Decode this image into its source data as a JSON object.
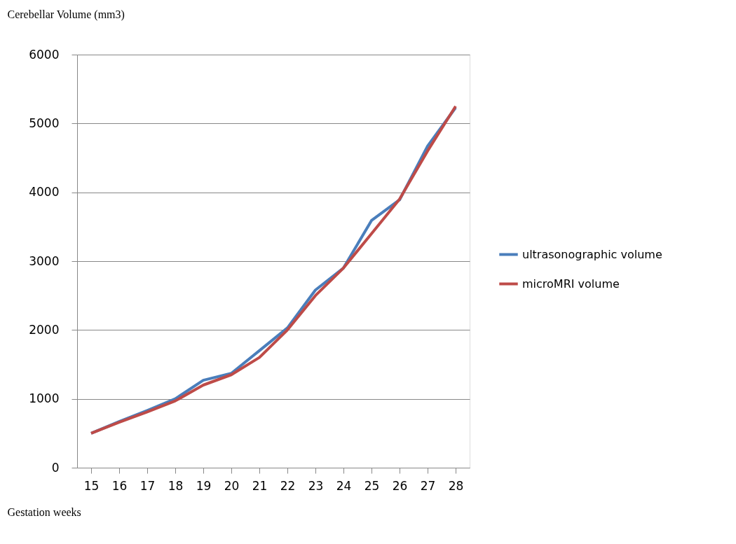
{
  "chart_data": {
    "type": "line",
    "ylabel": "Cerebellar Volume (mm3)",
    "xlabel": "Gestation weeks",
    "categories": [
      "15",
      "16",
      "17",
      "18",
      "19",
      "20",
      "21",
      "22",
      "23",
      "24",
      "25",
      "26",
      "27",
      "28"
    ],
    "series": [
      {
        "name": "ultrasonographic volume",
        "color": "#4a7ebb",
        "values": [
          500,
          670,
          830,
          1000,
          1270,
          1370,
          1700,
          2030,
          2580,
          2900,
          3590,
          3890,
          4670,
          5230
        ]
      },
      {
        "name": "microMRI volume",
        "color": "#be4b48",
        "values": [
          500,
          660,
          810,
          970,
          1200,
          1350,
          1600,
          2000,
          2500,
          2900,
          3400,
          3900,
          4600,
          5250
        ]
      }
    ],
    "ylim": [
      0,
      6000
    ],
    "yticks": [
      0,
      1000,
      2000,
      3000,
      4000,
      5000,
      6000
    ],
    "grid": "y",
    "legend": "right",
    "marker": "none",
    "line_style": "solid"
  }
}
